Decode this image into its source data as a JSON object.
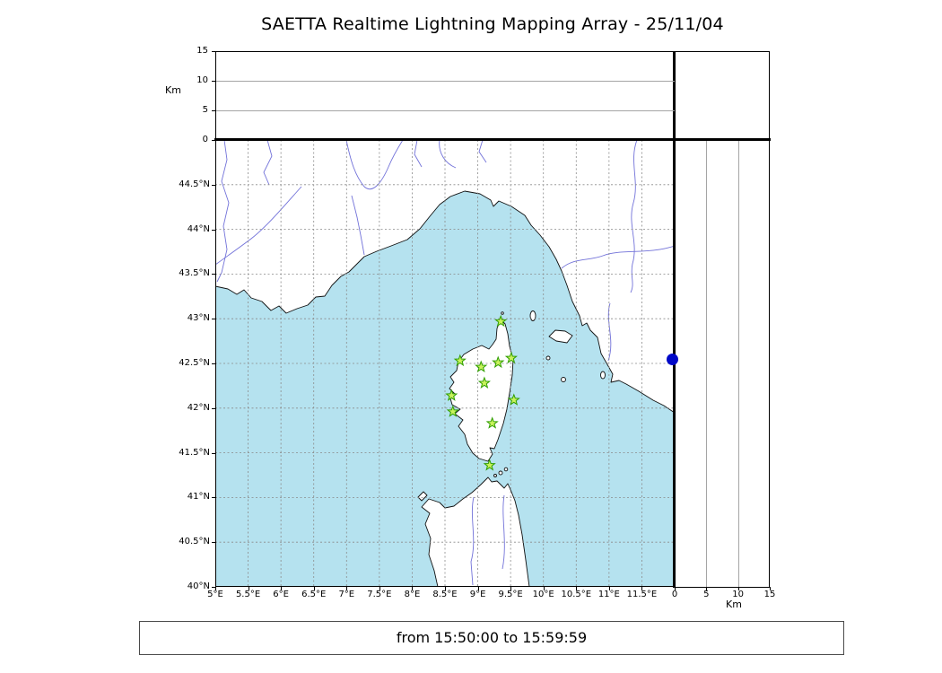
{
  "title": "SAETTA Realtime Lightning Mapping Array - 25/11/04",
  "footer": "from 15:50:00 to 15:59:59",
  "chart_data": {
    "type": "scatter",
    "title": "SAETTA Realtime Lightning Mapping Array - 25/11/04",
    "time_window": "from 15:50:00 to 15:59:59",
    "map_panel": {
      "lon_range_deg_e": [
        5,
        12
      ],
      "lat_range_deg_n": [
        40,
        45
      ],
      "lon_ticks": [
        {
          "v": 5,
          "label": "5°E"
        },
        {
          "v": 5.5,
          "label": "5.5°E"
        },
        {
          "v": 6,
          "label": "6°E"
        },
        {
          "v": 6.5,
          "label": "6.5°E"
        },
        {
          "v": 7,
          "label": "7°E"
        },
        {
          "v": 7.5,
          "label": "7.5°E"
        },
        {
          "v": 8,
          "label": "8°E"
        },
        {
          "v": 8.5,
          "label": "8.5°E"
        },
        {
          "v": 9,
          "label": "9°E"
        },
        {
          "v": 9.5,
          "label": "9.5°E"
        },
        {
          "v": 10,
          "label": "10°E"
        },
        {
          "v": 10.5,
          "label": "10.5°E"
        },
        {
          "v": 11,
          "label": "11°E"
        },
        {
          "v": 11.5,
          "label": "11.5°E"
        }
      ],
      "lat_ticks": [
        {
          "v": 44.5,
          "label": "44.5°N"
        },
        {
          "v": 44,
          "label": "44°N"
        },
        {
          "v": 43.5,
          "label": "43.5°N"
        },
        {
          "v": 43,
          "label": "43°N"
        },
        {
          "v": 42.5,
          "label": "42.5°N"
        },
        {
          "v": 42,
          "label": "42°N"
        },
        {
          "v": 41.5,
          "label": "41.5°N"
        },
        {
          "v": 41,
          "label": "41°N"
        },
        {
          "v": 40.5,
          "label": "40.5°N"
        },
        {
          "v": 40,
          "label": "40°N"
        }
      ],
      "grid_style": "dashed",
      "sea_color": "#b5e2ef",
      "land_color": "#ffffff"
    },
    "altitude_axis": {
      "label": "Km",
      "range_km": [
        0,
        15
      ],
      "ticks": [
        {
          "v": 0,
          "label": "0"
        },
        {
          "v": 5,
          "label": "5"
        },
        {
          "v": 10,
          "label": "10"
        },
        {
          "v": 15,
          "label": "15"
        }
      ]
    },
    "stations": [
      {
        "lon": 9.35,
        "lat": 42.97
      },
      {
        "lon": 8.73,
        "lat": 42.53
      },
      {
        "lon": 9.05,
        "lat": 42.46
      },
      {
        "lon": 9.31,
        "lat": 42.51
      },
      {
        "lon": 9.51,
        "lat": 42.56
      },
      {
        "lon": 9.1,
        "lat": 42.28
      },
      {
        "lon": 8.6,
        "lat": 42.14
      },
      {
        "lon": 9.55,
        "lat": 42.09
      },
      {
        "lon": 8.62,
        "lat": 41.96
      },
      {
        "lon": 9.22,
        "lat": 41.83
      },
      {
        "lon": 9.18,
        "lat": 41.36
      }
    ],
    "station_marker": {
      "shape": "star",
      "fill": "#c9f25d",
      "stroke": "#2f9e00"
    },
    "source_point": {
      "lat": 42.55,
      "alt_km": 0,
      "color": "#0008c8"
    }
  }
}
